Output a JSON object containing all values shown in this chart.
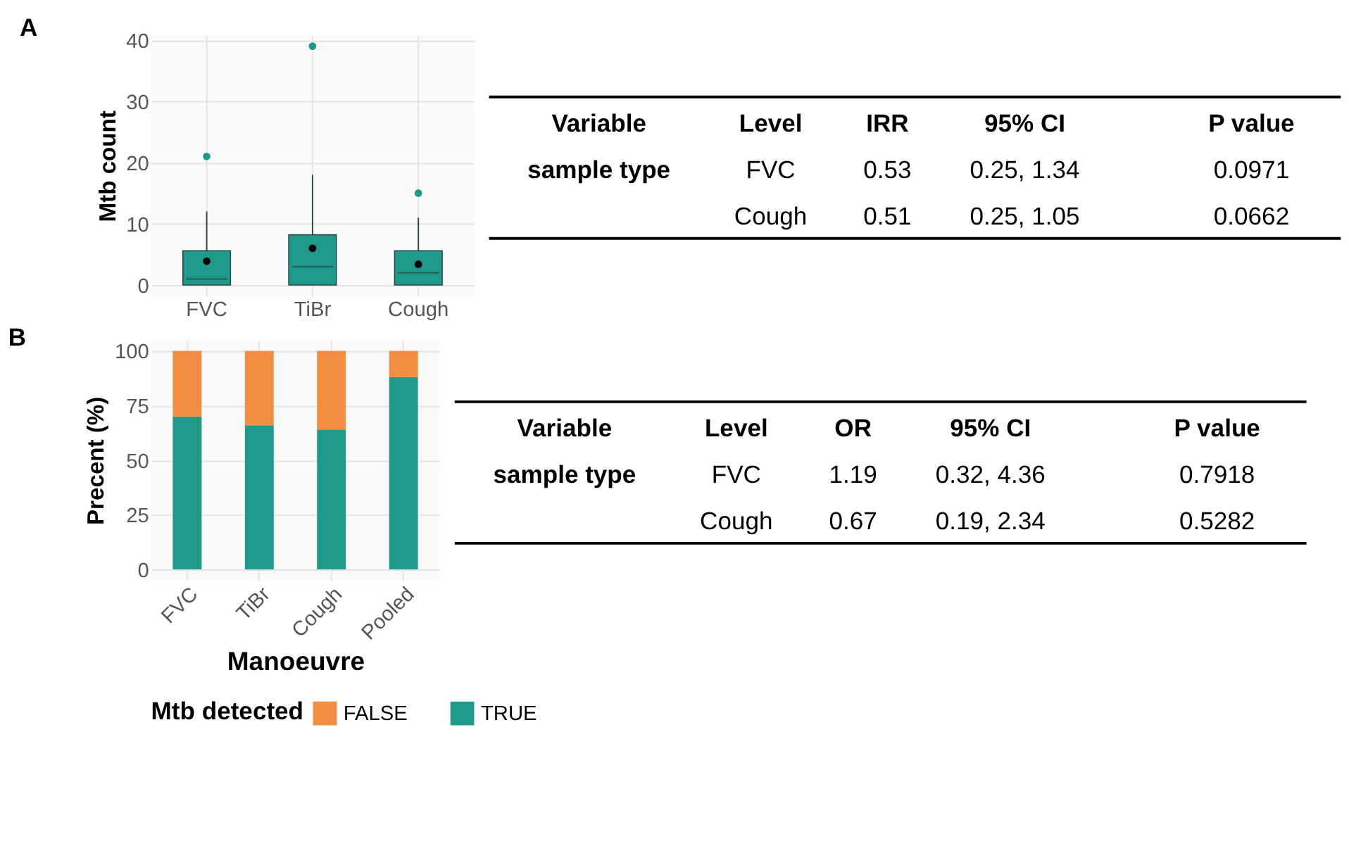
{
  "chart_data": [
    {
      "type": "box",
      "title": "A",
      "ylabel": "Mtb count",
      "categories": [
        "FVC",
        "TiBr",
        "Cough"
      ],
      "ylim": [
        -1.8,
        40.8
      ],
      "yticks": [
        0,
        10,
        20,
        30,
        40
      ],
      "grid": true,
      "series": [
        {
          "color": "#1f9a8a",
          "boxes": [
            {
              "low": 0,
              "q1": 0,
              "median": 1,
              "q3": 5.6,
              "high": 12,
              "mean": 3.9,
              "outliers": [
                21
              ]
            },
            {
              "low": 0,
              "q1": 0,
              "median": 3,
              "q3": 8.2,
              "high": 18,
              "mean": 6,
              "outliers": [
                39
              ]
            },
            {
              "low": 0,
              "q1": 0,
              "median": 2,
              "q3": 5.6,
              "high": 11,
              "mean": 3.4,
              "outliers": [
                15
              ]
            }
          ]
        }
      ]
    },
    {
      "type": "other",
      "categories": [
        "Variable",
        "Level",
        "IRR",
        "95% CI",
        "P value"
      ],
      "annotations": [
        "sample type",
        "FVC",
        "0.53",
        "0.25, 1.34",
        "0.0971",
        null,
        "Cough",
        "0.51",
        "0.25, 1.05",
        "0.0662"
      ]
    },
    {
      "type": "bar",
      "title": "B",
      "ylabel": "Precent (%)",
      "xlabel": "Manoeuvre",
      "legend_title": "Mtb detected",
      "legend": "bottom",
      "stacked": true,
      "categories": [
        "FVC",
        "TiBr",
        "Cough",
        "Pooled"
      ],
      "ylim": [
        -5,
        105
      ],
      "yticks": [
        0,
        25,
        50,
        75,
        100
      ],
      "grid": true,
      "series": [
        {
          "name": "TRUE",
          "color": "#1f9a8a",
          "values": [
            70,
            66,
            64,
            88
          ]
        },
        {
          "name": "FALSE",
          "color": "#f28e44",
          "values": [
            30,
            34,
            36,
            12
          ]
        }
      ]
    },
    {
      "type": "other",
      "categories": [
        "Variable",
        "Level",
        "OR",
        "95% CI",
        "P value"
      ],
      "annotations": [
        "sample type",
        "FVC",
        "1.19",
        "0.32, 4.36",
        "0.7918",
        null,
        "Cough",
        "0.67",
        "0.19, 2.34",
        "0.5282"
      ]
    }
  ]
}
